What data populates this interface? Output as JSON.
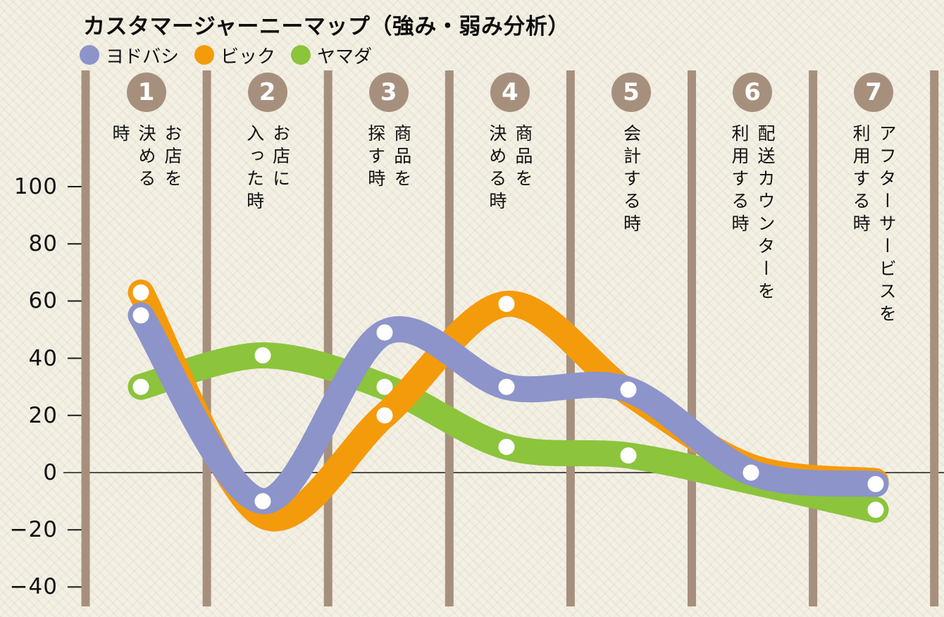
{
  "title": "カスタマージャーニーマップ（強み・弱み分析）",
  "legend": [
    {
      "id": "yodobashi",
      "label": "ヨドバシ",
      "color": "#8c94ca"
    },
    {
      "id": "bic",
      "label": "ビック",
      "color": "#f49b0b"
    },
    {
      "id": "yamada",
      "label": "ヤマダ",
      "color": "#8cc43c"
    }
  ],
  "stages": [
    {
      "number": "1",
      "name": "お店を決める時",
      "lines": [
        "お店を",
        "決める",
        "時"
      ]
    },
    {
      "number": "2",
      "name": "お店に入った時",
      "lines": [
        "お店に",
        "入った時"
      ]
    },
    {
      "number": "3",
      "name": "商品を探す時",
      "lines": [
        "商品を",
        "探す時"
      ]
    },
    {
      "number": "4",
      "name": "商品を決める時",
      "lines": [
        "商品を",
        "決める時"
      ]
    },
    {
      "number": "5",
      "name": "会計する時",
      "lines": [
        "会計する時"
      ]
    },
    {
      "number": "6",
      "name": "配送カウンターを利用する時",
      "lines": [
        "配送カウンターを",
        "利用する時"
      ]
    },
    {
      "number": "7",
      "name": "アフターサービスを利用する時",
      "lines": [
        "アフターサービスを",
        "利用する時"
      ]
    }
  ],
  "y_axis": {
    "ticks": [
      {
        "value": 100,
        "label": "100"
      },
      {
        "value": 80,
        "label": "80"
      },
      {
        "value": 60,
        "label": "60"
      },
      {
        "value": 40,
        "label": "40"
      },
      {
        "value": 20,
        "label": "20"
      },
      {
        "value": 0,
        "label": "0"
      },
      {
        "value": -20,
        "label": "−20"
      },
      {
        "value": -40,
        "label": "−40"
      }
    ]
  },
  "chart_data": {
    "type": "line",
    "title": "カスタマージャーニーマップ（強み・弱み分析）",
    "categories": [
      "お店を決める時",
      "お店に入った時",
      "商品を探す時",
      "商品を決める時",
      "会計する時",
      "配送カウンターを利用する時",
      "アフターサービスを利用する時"
    ],
    "x": [
      1,
      2,
      3,
      4,
      5,
      6,
      7
    ],
    "series": [
      {
        "id": "yodobashi",
        "name": "ヨドバシ",
        "color": "#8c94ca",
        "values": [
          55,
          -10,
          49,
          30,
          29,
          0,
          -4
        ],
        "dots_visible": [
          true,
          true,
          true,
          true,
          true,
          true,
          true
        ]
      },
      {
        "id": "bic",
        "name": "ビック",
        "color": "#f49b0b",
        "values": [
          63,
          -15,
          20,
          59,
          28,
          2,
          -3
        ],
        "dots_visible": [
          true,
          false,
          true,
          true,
          false,
          false,
          false
        ]
      },
      {
        "id": "yamada",
        "name": "ヤマダ",
        "color": "#8cc43c",
        "values": [
          30,
          41,
          30,
          9,
          6,
          -3,
          -13
        ],
        "dots_visible": [
          true,
          true,
          true,
          true,
          true,
          false,
          true
        ]
      }
    ],
    "ylim": [
      -40,
      100
    ],
    "grid": "vertical-bars",
    "legend_position": "top-left"
  },
  "colors": {
    "background": "#f3f0e4",
    "bar": "#a6907d",
    "badge": "#a6907d",
    "axis": "#1a1a1a",
    "dot": "#ffffff",
    "text": "#111111"
  }
}
